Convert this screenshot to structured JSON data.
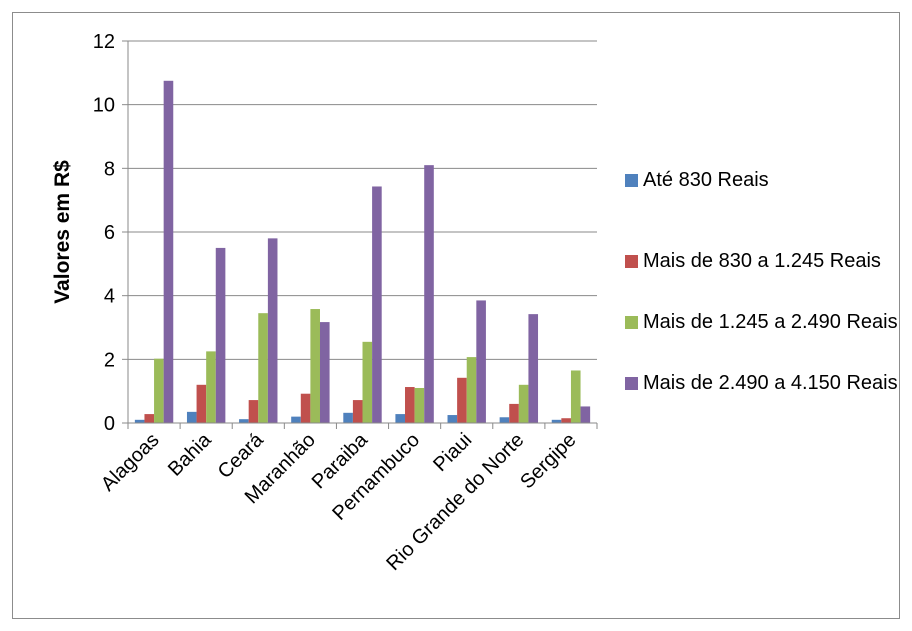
{
  "chart_data": {
    "type": "bar",
    "ylabel": "Valores em R$",
    "ylim": [
      0,
      12
    ],
    "yticks": [
      "0",
      "2",
      "4",
      "6",
      "8",
      "10",
      "12"
    ],
    "categories": [
      "Alagoas",
      "Bahia",
      "Ceará",
      "Maranhão",
      "Paraiba",
      "Pernambuco",
      "Piaui",
      "Rio Grande do Norte",
      "Sergipe"
    ],
    "grid": true,
    "legend_position": "right",
    "series": [
      {
        "name": "Até 830 Reais",
        "color": "#4F81BD",
        "values": [
          0.1,
          0.35,
          0.12,
          0.2,
          0.32,
          0.28,
          0.25,
          0.18,
          0.1
        ]
      },
      {
        "name": "Mais de 830 a 1.245 Reais",
        "color": "#C0504D",
        "values": [
          0.28,
          1.2,
          0.72,
          0.92,
          0.72,
          1.13,
          1.42,
          0.6,
          0.15
        ]
      },
      {
        "name": "Mais de 1.245 a 2.490 Reais",
        "color": "#9BBB59",
        "values": [
          2.02,
          2.25,
          3.45,
          3.58,
          2.55,
          1.1,
          2.07,
          1.2,
          1.65
        ]
      },
      {
        "name": "Mais de 2.490 a 4.150 Reais",
        "color": "#8064A2",
        "values": [
          10.75,
          5.5,
          5.8,
          3.17,
          7.43,
          8.1,
          3.85,
          3.42,
          0.52
        ]
      }
    ]
  }
}
